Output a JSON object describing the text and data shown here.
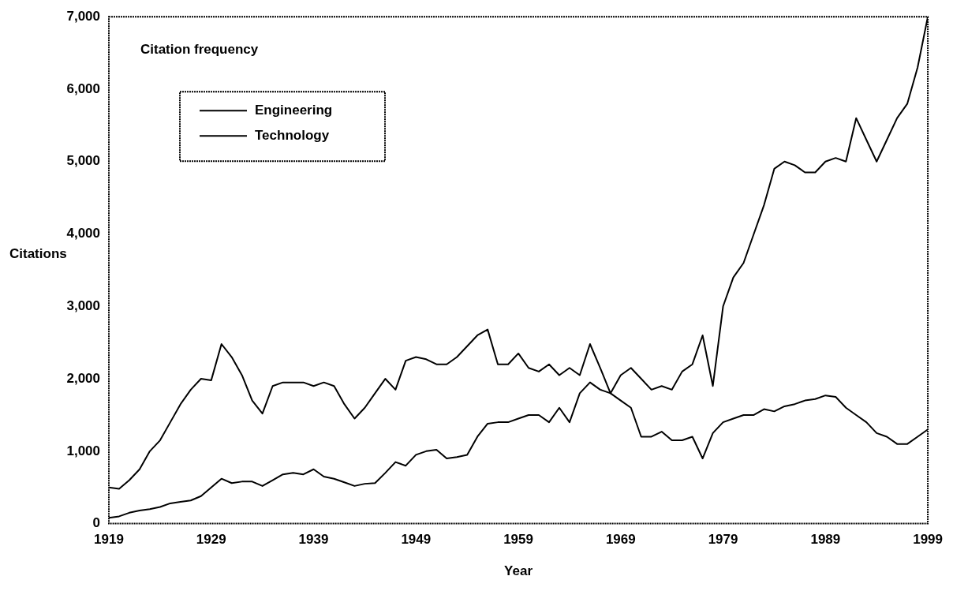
{
  "chart_data": {
    "type": "line",
    "title": "Citation frequency",
    "xlabel": "Year",
    "ylabel": "Citations",
    "x": [
      1919,
      1920,
      1921,
      1922,
      1923,
      1924,
      1925,
      1926,
      1927,
      1928,
      1929,
      1930,
      1931,
      1932,
      1933,
      1934,
      1935,
      1936,
      1937,
      1938,
      1939,
      1940,
      1941,
      1942,
      1943,
      1944,
      1945,
      1946,
      1947,
      1948,
      1949,
      1950,
      1951,
      1952,
      1953,
      1954,
      1955,
      1956,
      1957,
      1958,
      1959,
      1960,
      1961,
      1962,
      1963,
      1964,
      1965,
      1966,
      1967,
      1968,
      1969,
      1970,
      1971,
      1972,
      1973,
      1974,
      1975,
      1976,
      1977,
      1978,
      1979,
      1980,
      1981,
      1982,
      1983,
      1984,
      1985,
      1986,
      1987,
      1988,
      1989,
      1990,
      1991,
      1992,
      1993,
      1994,
      1995,
      1996,
      1997,
      1998,
      1999
    ],
    "series": [
      {
        "name": "Engineering",
        "color": "#000000",
        "values": [
          500,
          480,
          600,
          750,
          1000,
          1150,
          1400,
          1650,
          1850,
          2000,
          1980,
          2480,
          2300,
          2050,
          1700,
          1520,
          1900,
          1950,
          1950,
          1950,
          1900,
          1950,
          1900,
          1650,
          1450,
          1600,
          1800,
          2000,
          1850,
          2250,
          2300,
          2270,
          2200,
          2200,
          2300,
          2450,
          2600,
          2680,
          2200,
          2200,
          2350,
          2150,
          2100,
          2200,
          2050,
          2150,
          2050,
          2480,
          2150,
          1800,
          1700,
          1600,
          1200,
          1200,
          1270,
          1150,
          1150,
          1200,
          900,
          1250,
          1400,
          1450,
          1500,
          1500,
          1580,
          1550,
          1620,
          1650,
          1700,
          1720,
          1770,
          1750,
          1600,
          1500,
          1400,
          1250,
          1200,
          1100,
          1100,
          1200,
          1300
        ]
      },
      {
        "name": "Technology",
        "color": "#000000",
        "values": [
          80,
          100,
          150,
          180,
          200,
          230,
          280,
          300,
          320,
          380,
          500,
          620,
          560,
          580,
          580,
          520,
          600,
          680,
          700,
          680,
          750,
          650,
          620,
          570,
          520,
          550,
          560,
          700,
          850,
          800,
          950,
          1000,
          1020,
          900,
          920,
          950,
          1200,
          1380,
          1400,
          1400,
          1450,
          1500,
          1500,
          1400,
          1600,
          1400,
          1800,
          1950,
          1850,
          1800,
          2050,
          2150,
          2000,
          1850,
          1900,
          1850,
          2100,
          2200,
          2600,
          1900,
          3000,
          3400,
          3600,
          4000,
          4400,
          4900,
          5000,
          4950,
          4850,
          4850,
          5000,
          5050,
          5000,
          5600,
          5300,
          5000,
          5300,
          5600,
          5800,
          6300,
          7000
        ]
      }
    ],
    "xlim": [
      1919,
      1999
    ],
    "xticks": [
      1919,
      1929,
      1939,
      1949,
      1959,
      1969,
      1979,
      1989,
      1999
    ],
    "ylim": [
      0,
      7000
    ],
    "yticks": [
      0,
      {
        "value": 1000,
        "label": "1,000"
      },
      {
        "value": 2000,
        "label": "2,000"
      },
      {
        "value": 3000,
        "label": "3,000"
      },
      {
        "value": 4000,
        "label": "4,000"
      },
      {
        "value": 5000,
        "label": "5,000"
      },
      {
        "value": 6000,
        "label": "6,000"
      },
      {
        "value": 7000,
        "label": "7,000"
      }
    ],
    "grid": false,
    "legend": "top left",
    "marker": "none",
    "line_style": "solid"
  }
}
